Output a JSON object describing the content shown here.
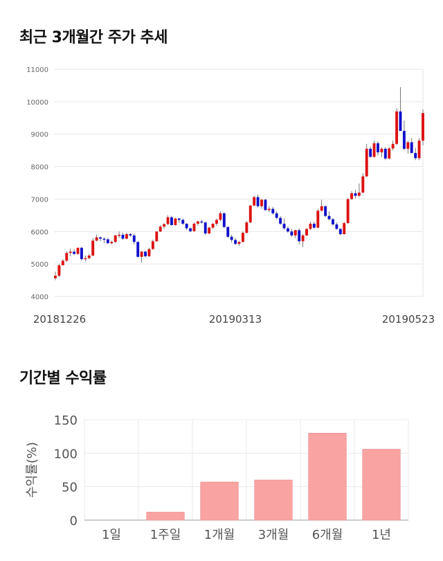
{
  "section1": {
    "title": "최근 3개월간 주가 추세"
  },
  "section2": {
    "title": "기간별 수익률"
  },
  "chart_data": [
    {
      "type": "candlestick",
      "title": "최근 3개월간 주가 추세",
      "ylim": [
        4000,
        11000
      ],
      "y_ticks": [
        "11000",
        "10000",
        "9000",
        "8000",
        "7000",
        "6000",
        "5000",
        "4000"
      ],
      "x_tick_labels": [
        "20181226",
        "20190313",
        "20190523"
      ],
      "grid": true,
      "up_color": "#dd1111",
      "down_color": "#1111cc",
      "candles": [
        [
          4560,
          4760,
          4500,
          4640
        ],
        [
          4640,
          5000,
          4600,
          4960
        ],
        [
          4960,
          5150,
          4960,
          5100
        ],
        [
          5100,
          5400,
          5060,
          5340
        ],
        [
          5340,
          5480,
          5240,
          5380
        ],
        [
          5380,
          5460,
          5280,
          5310
        ],
        [
          5310,
          5500,
          5290,
          5500
        ],
        [
          5500,
          5520,
          5100,
          5150
        ],
        [
          5150,
          5260,
          5080,
          5180
        ],
        [
          5180,
          5300,
          5140,
          5260
        ],
        [
          5260,
          5800,
          5240,
          5720
        ],
        [
          5720,
          5900,
          5700,
          5820
        ],
        [
          5820,
          5850,
          5700,
          5780
        ],
        [
          5780,
          5820,
          5640,
          5760
        ],
        [
          5760,
          5800,
          5620,
          5640
        ],
        [
          5640,
          5720,
          5600,
          5680
        ],
        [
          5680,
          5900,
          5650,
          5880
        ],
        [
          5880,
          6000,
          5800,
          5900
        ],
        [
          5900,
          5960,
          5740,
          5780
        ],
        [
          5780,
          5960,
          5760,
          5920
        ],
        [
          5920,
          5960,
          5840,
          5880
        ],
        [
          5880,
          5920,
          5600,
          5680
        ],
        [
          5680,
          5700,
          5200,
          5220
        ],
        [
          5220,
          5400,
          5050,
          5380
        ],
        [
          5380,
          5400,
          5200,
          5240
        ],
        [
          5240,
          5500,
          5220,
          5460
        ],
        [
          5460,
          5750,
          5440,
          5700
        ],
        [
          5700,
          6000,
          5680,
          6000
        ],
        [
          6000,
          6200,
          5990,
          6150
        ],
        [
          6150,
          6250,
          6080,
          6230
        ],
        [
          6230,
          6500,
          6200,
          6440
        ],
        [
          6440,
          6480,
          6180,
          6200
        ],
        [
          6200,
          6420,
          6180,
          6400
        ],
        [
          6400,
          6420,
          6260,
          6360
        ],
        [
          6360,
          6400,
          6200,
          6240
        ],
        [
          6240,
          6260,
          6050,
          6100
        ],
        [
          6100,
          6120,
          5980,
          6010
        ],
        [
          6010,
          6280,
          6000,
          6240
        ],
        [
          6240,
          6330,
          6180,
          6310
        ],
        [
          6310,
          6360,
          6240,
          6280
        ],
        [
          6280,
          6300,
          5900,
          5940
        ],
        [
          5940,
          6150,
          5920,
          6120
        ],
        [
          6120,
          6260,
          6080,
          6240
        ],
        [
          6240,
          6400,
          6180,
          6360
        ],
        [
          6360,
          6620,
          6320,
          6560
        ],
        [
          6560,
          6600,
          6100,
          6140
        ],
        [
          6140,
          6160,
          5800,
          5840
        ],
        [
          5840,
          5900,
          5660,
          5740
        ],
        [
          5740,
          5800,
          5580,
          5620
        ],
        [
          5620,
          5700,
          5560,
          5680
        ],
        [
          5680,
          6000,
          5660,
          5960
        ],
        [
          5960,
          6320,
          5940,
          6280
        ],
        [
          6280,
          6820,
          6260,
          6800
        ],
        [
          6800,
          7100,
          6780,
          7060
        ],
        [
          7060,
          7140,
          6740,
          6780
        ],
        [
          6780,
          7000,
          6700,
          6980
        ],
        [
          6980,
          7000,
          6640,
          6660
        ],
        [
          6660,
          6780,
          6600,
          6700
        ],
        [
          6700,
          6760,
          6520,
          6560
        ],
        [
          6560,
          6620,
          6380,
          6420
        ],
        [
          6420,
          6480,
          6200,
          6240
        ],
        [
          6240,
          6400,
          6060,
          6100
        ],
        [
          6100,
          6160,
          5960,
          6000
        ],
        [
          6000,
          6080,
          5840,
          5880
        ],
        [
          5880,
          6060,
          5800,
          6040
        ],
        [
          6040,
          6100,
          5600,
          5700
        ],
        [
          5700,
          5920,
          5520,
          5880
        ],
        [
          5880,
          6100,
          5860,
          6080
        ],
        [
          6080,
          6300,
          6040,
          6240
        ],
        [
          6240,
          6300,
          6080,
          6120
        ],
        [
          6120,
          6700,
          6100,
          6640
        ],
        [
          6640,
          6980,
          6620,
          6780
        ],
        [
          6780,
          6800,
          6440,
          6480
        ],
        [
          6480,
          6620,
          6340,
          6380
        ],
        [
          6380,
          6420,
          6180,
          6220
        ],
        [
          6220,
          6280,
          6060,
          6080
        ],
        [
          6080,
          6100,
          5880,
          5920
        ],
        [
          5920,
          6300,
          5900,
          6260
        ],
        [
          6260,
          7020,
          6240,
          7000
        ],
        [
          7000,
          7240,
          6980,
          7180
        ],
        [
          7180,
          7280,
          7020,
          7100
        ],
        [
          7100,
          7480,
          7080,
          7200
        ],
        [
          7200,
          7800,
          7180,
          7700
        ],
        [
          7700,
          8700,
          7680,
          8550
        ],
        [
          8550,
          8620,
          8280,
          8300
        ],
        [
          8300,
          8800,
          8280,
          8720
        ],
        [
          8720,
          8780,
          8340,
          8440
        ],
        [
          8440,
          8600,
          8300,
          8550
        ],
        [
          8550,
          8600,
          8200,
          8250
        ],
        [
          8250,
          8600,
          8220,
          8560
        ],
        [
          8560,
          8800,
          8500,
          8700
        ],
        [
          8700,
          9800,
          8660,
          9700
        ],
        [
          9700,
          10450,
          9100,
          9100
        ],
        [
          9100,
          9420,
          8500,
          8550
        ],
        [
          8550,
          8800,
          8400,
          8750
        ],
        [
          8750,
          8880,
          8400,
          8420
        ],
        [
          8420,
          8580,
          8200,
          8260
        ],
        [
          8260,
          8880,
          8200,
          8800
        ],
        [
          8800,
          9760,
          8660,
          9650
        ]
      ]
    },
    {
      "type": "bar",
      "title": "기간별 수익률",
      "categories": [
        "1일",
        "1주일",
        "1개월",
        "3개월",
        "6개월",
        "1년"
      ],
      "values": [
        0,
        12,
        57,
        60,
        130,
        106
      ],
      "ylabel": "수익률(%)",
      "ylim": [
        0,
        150
      ],
      "y_ticks": [
        "150",
        "100",
        "50",
        "0"
      ],
      "grid": true,
      "bar_color": "#f9a3a3"
    }
  ]
}
